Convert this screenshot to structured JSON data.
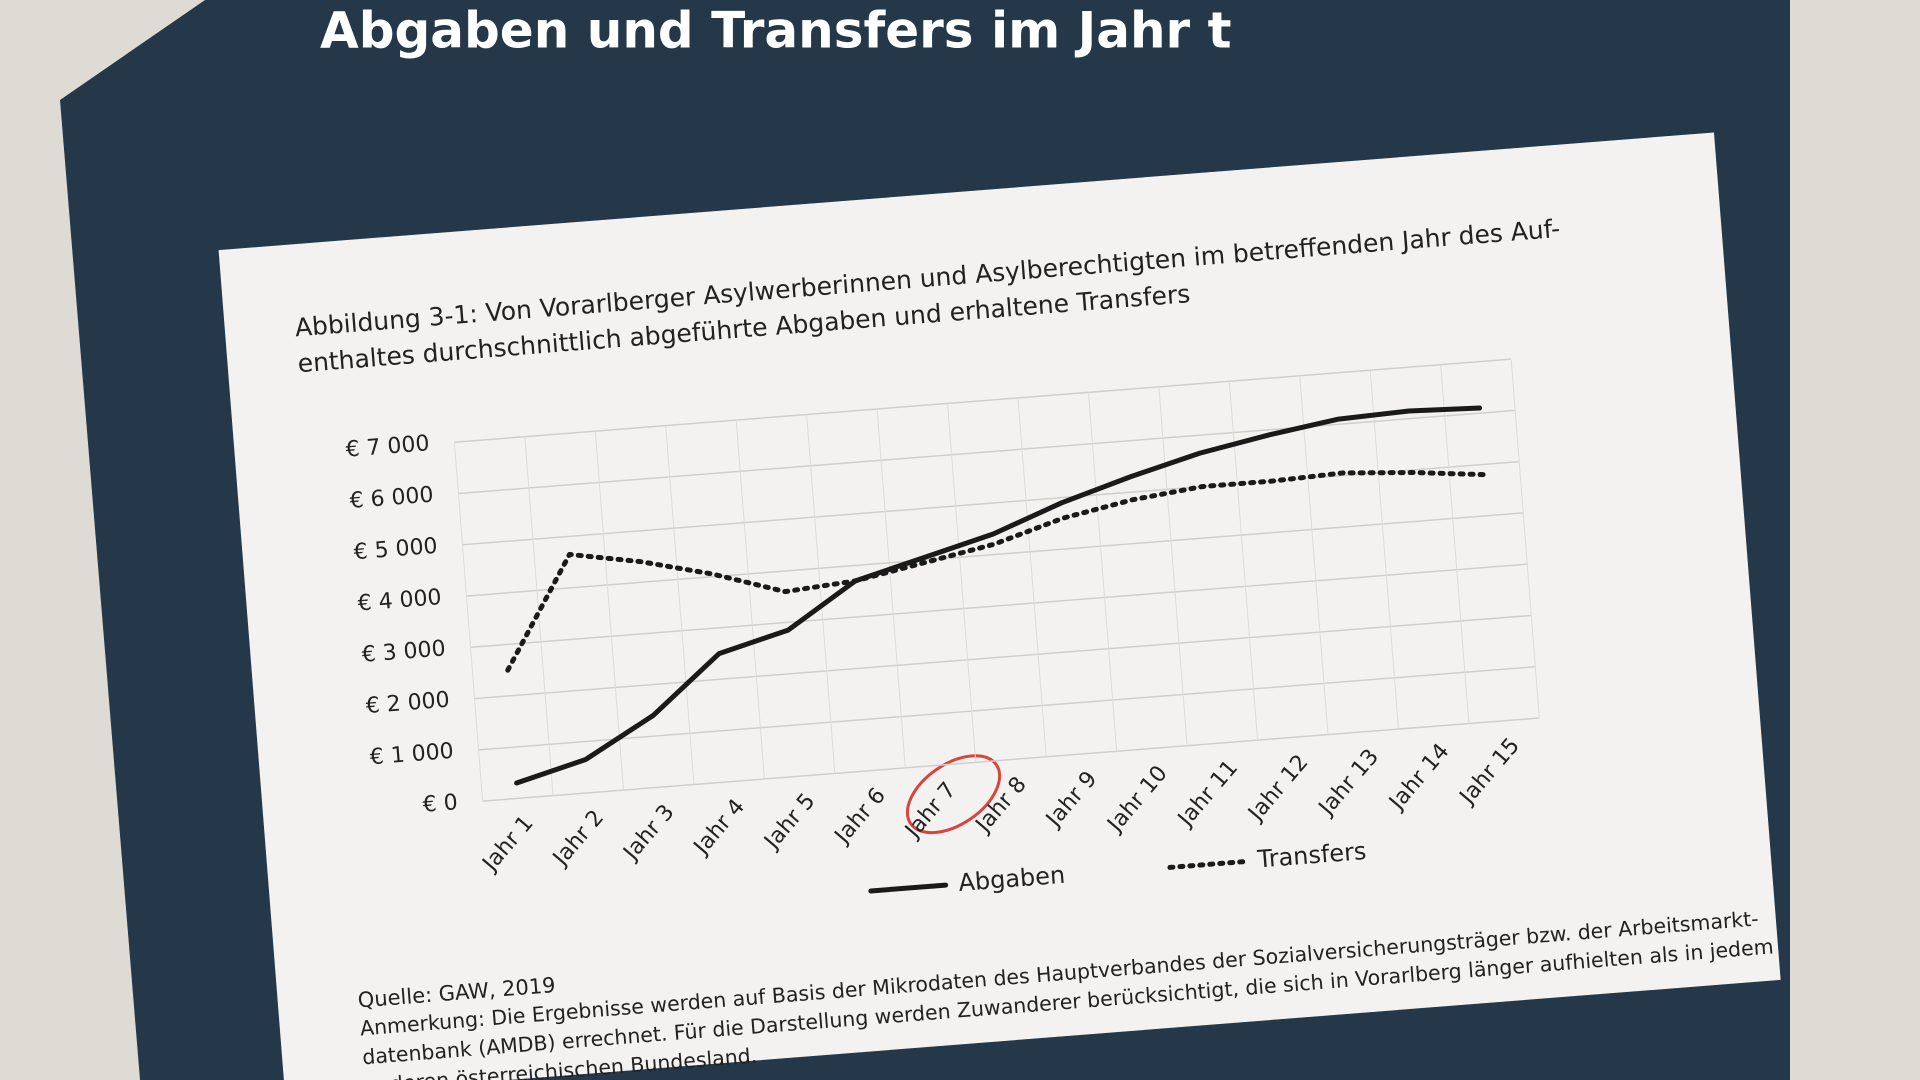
{
  "slide_title": "Abgaben und Transfers im Jahr t",
  "chart_data": {
    "type": "line",
    "caption": [
      "Abbildung 3-1:   Von Vorarlberger Asylwerberinnen und Asylberechtigten im betreffenden Jahr des Auf-",
      "enthaltes durchschnittlich abgeführte Abgaben und erhaltene Transfers"
    ],
    "categories": [
      "Jahr 1",
      "Jahr 2",
      "Jahr 3",
      "Jahr 4",
      "Jahr 5",
      "Jahr 6",
      "Jahr 7",
      "Jahr 8",
      "Jahr 9",
      "Jahr 10",
      "Jahr 11",
      "Jahr 12",
      "Jahr 13",
      "Jahr 14",
      "Jahr 15"
    ],
    "series": [
      {
        "name": "Abgaben",
        "color": "#1a1a1a",
        "style": "solid",
        "values": [
          300,
          650,
          1400,
          2500,
          2850,
          3700,
          4050,
          4400,
          4900,
          5300,
          5650,
          5900,
          6100,
          6150,
          6100
        ]
      },
      {
        "name": "Transfers",
        "color": "#1a1a1a",
        "style": "dotted",
        "values": [
          2500,
          4650,
          4400,
          4050,
          3600,
          3700,
          3950,
          4200,
          4600,
          4850,
          5000,
          5000,
          5050,
          4950,
          4800
        ]
      }
    ],
    "ylim": [
      0,
      7000
    ],
    "yticks": [
      {
        "value": 0,
        "label": "€ 0"
      },
      {
        "value": 1000,
        "label": "€ 1 000"
      },
      {
        "value": 2000,
        "label": "€ 2 000"
      },
      {
        "value": 3000,
        "label": "€ 3 000"
      },
      {
        "value": 4000,
        "label": "€ 4 000"
      },
      {
        "value": 5000,
        "label": "€ 5 000"
      },
      {
        "value": 6000,
        "label": "€ 6 000"
      },
      {
        "value": 7000,
        "label": "€ 7 000"
      }
    ],
    "grid": true,
    "legend": "bottom",
    "source": "Quelle: GAW, 2019",
    "note": [
      "Anmerkung: Die Ergebnisse werden auf Basis der Mikrodaten des Hauptverbandes der Sozialversicherungsträger bzw. der Arbeitsmarkt-",
      "datenbank (AMDB) errechnet. Für die Darstellung werden Zuwanderer berücksichtigt, die sich in Vorarlberg länger aufhielten als in jedem",
      "anderen österreichischen Bundesland."
    ]
  }
}
